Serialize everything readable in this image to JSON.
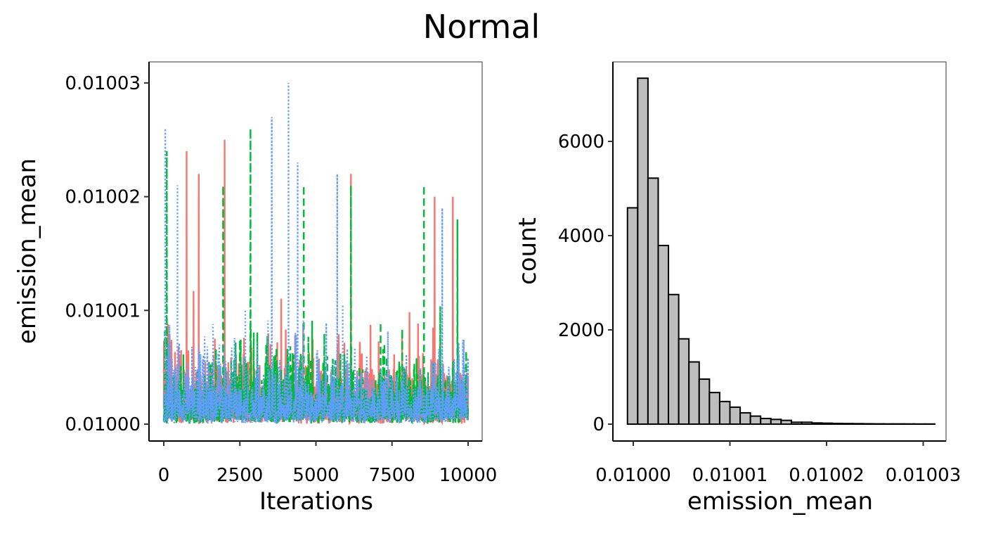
{
  "title": "Normal",
  "chart_data": [
    {
      "type": "line",
      "xlabel": "Iterations",
      "ylabel": "emission_mean",
      "xlim": [
        0,
        10000
      ],
      "ylim": [
        0.0099997,
        0.0100319
      ],
      "xticks": [
        0,
        2500,
        5000,
        7500,
        10000
      ],
      "xtick_labels": [
        "0",
        "2500",
        "5000",
        "7500",
        "10000"
      ],
      "yticks": [
        0.01,
        0.01001,
        0.01002,
        0.01003
      ],
      "ytick_labels": [
        "0.01000",
        "0.01001",
        "0.01002",
        "0.01003"
      ],
      "grid": false,
      "legend": "none",
      "series": [
        {
          "color": "#F8766D",
          "linetype": "solid",
          "peaks": [
            [
              750,
              0.010024
            ],
            [
              1150,
              0.010022
            ],
            [
              2000,
              0.010025
            ],
            [
              6150,
              0.010022
            ],
            [
              8900,
              0.01002
            ],
            [
              9500,
              0.01002
            ]
          ]
        },
        {
          "color": "#00BA38",
          "linetype": "dashed",
          "peaks": [
            [
              100,
              0.010024
            ],
            [
              1950,
              0.010021
            ],
            [
              2850,
              0.010026
            ],
            [
              4600,
              0.010021
            ],
            [
              6150,
              0.010021
            ],
            [
              8550,
              0.010021
            ],
            [
              9650,
              0.010018
            ]
          ]
        },
        {
          "color": "#619CFF",
          "linetype": "dotted",
          "peaks": [
            [
              50,
              0.010026
            ],
            [
              450,
              0.010021
            ],
            [
              3550,
              0.010027
            ],
            [
              4100,
              0.01003
            ],
            [
              4400,
              0.010023
            ],
            [
              5700,
              0.010022
            ],
            [
              9150,
              0.010019
            ]
          ]
        }
      ]
    },
    {
      "type": "bar",
      "subtype": "histogram",
      "xlabel": "emission_mean",
      "ylabel": "count",
      "bin_start": 0.0099994,
      "bin_width": 1.06e-06,
      "values": [
        4590,
        7340,
        5220,
        3790,
        2750,
        1810,
        1320,
        955,
        670,
        480,
        360,
        240,
        170,
        120,
        100,
        80,
        40,
        40,
        25,
        20,
        15,
        12,
        10,
        8,
        6,
        5,
        5,
        4,
        3,
        3
      ],
      "xlim": [
        0.0099978,
        0.0100324
      ],
      "ylim": [
        -370,
        7700
      ],
      "xticks": [
        0.01,
        0.01001,
        0.01002,
        0.01003
      ],
      "xtick_labels": [
        "0.01000",
        "0.01001",
        "0.01002",
        "0.01003"
      ],
      "yticks": [
        0,
        2000,
        4000,
        6000
      ],
      "ytick_labels": [
        "0",
        "2000",
        "4000",
        "6000"
      ],
      "fill": "#BEBEBE",
      "edge": "#000000",
      "grid": false
    }
  ]
}
